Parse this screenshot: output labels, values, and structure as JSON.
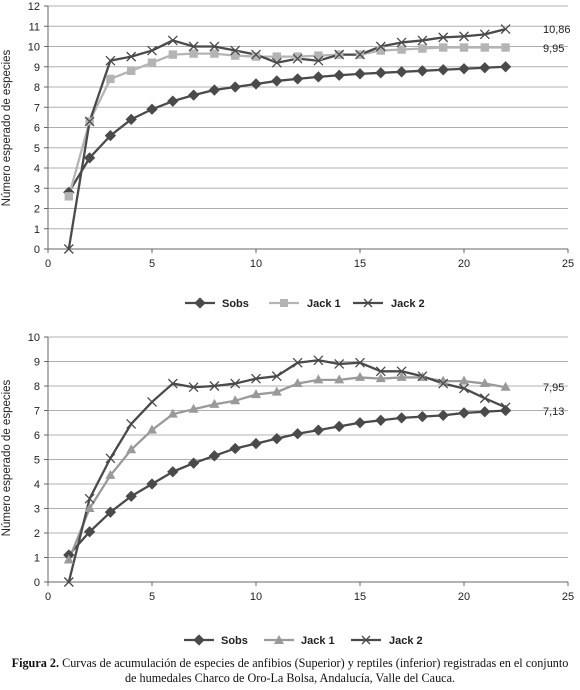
{
  "charts": [
    {
      "ylabel": "Número esperado de especies",
      "xlim": [
        0,
        25
      ],
      "ylim": [
        0,
        12
      ],
      "xticks": [
        "0",
        "5",
        "10",
        "15",
        "20",
        "25"
      ],
      "yticks": [
        "0",
        "1",
        "2",
        "3",
        "4",
        "5",
        "6",
        "7",
        "8",
        "9",
        "10",
        "11",
        "12"
      ],
      "end_labels": [
        "10,86",
        "9,95"
      ],
      "legend": [
        "Sobs",
        "Jack 1",
        "Jack 2"
      ]
    },
    {
      "ylabel": "Número esperado de especies",
      "xlim": [
        0,
        25
      ],
      "ylim": [
        0,
        10
      ],
      "xticks": [
        "0",
        "5",
        "10",
        "15",
        "20",
        "25"
      ],
      "yticks": [
        "0",
        "1",
        "2",
        "3",
        "4",
        "5",
        "6",
        "7",
        "8",
        "9",
        "10"
      ],
      "end_labels": [
        "7,95",
        "7,13"
      ],
      "legend": [
        "Sobs",
        "Jack 1",
        "Jack 2"
      ]
    }
  ],
  "chart_data": [
    {
      "type": "line",
      "ylabel": "Número esperado de especies",
      "xlim": [
        0,
        25
      ],
      "ylim": [
        0,
        12
      ],
      "grid": "horizontal",
      "legend_position": "bottom",
      "x": [
        1,
        2,
        3,
        4,
        5,
        6,
        7,
        8,
        9,
        10,
        11,
        12,
        13,
        14,
        15,
        16,
        17,
        18,
        19,
        20,
        21,
        22
      ],
      "series": [
        {
          "name": "Sobs",
          "marker": "diamond",
          "color": "#4a4a4a",
          "values": [
            2.8,
            4.5,
            5.6,
            6.4,
            6.9,
            7.3,
            7.6,
            7.85,
            8.0,
            8.15,
            8.3,
            8.4,
            8.5,
            8.58,
            8.65,
            8.7,
            8.75,
            8.8,
            8.85,
            8.9,
            8.95,
            9.0
          ]
        },
        {
          "name": "Jack 1",
          "marker": "square",
          "color": "#b4b4b4",
          "values": [
            2.6,
            6.3,
            8.4,
            8.8,
            9.2,
            9.6,
            9.65,
            9.65,
            9.55,
            9.5,
            9.5,
            9.5,
            9.55,
            9.6,
            9.6,
            9.8,
            9.85,
            9.9,
            9.95,
            9.95,
            9.95,
            9.95
          ]
        },
        {
          "name": "Jack 2",
          "marker": "x",
          "color": "#4a4a4a",
          "values": [
            0.0,
            6.3,
            9.3,
            9.5,
            9.8,
            10.3,
            10.0,
            10.0,
            9.8,
            9.6,
            9.2,
            9.4,
            9.3,
            9.6,
            9.6,
            10.0,
            10.2,
            10.3,
            10.45,
            10.5,
            10.6,
            10.86
          ]
        }
      ]
    },
    {
      "type": "line",
      "ylabel": "Número esperado de especies",
      "xlim": [
        0,
        25
      ],
      "ylim": [
        0,
        10
      ],
      "grid": "horizontal",
      "legend_position": "bottom",
      "x": [
        1,
        2,
        3,
        4,
        5,
        6,
        7,
        8,
        9,
        10,
        11,
        12,
        13,
        14,
        15,
        16,
        17,
        18,
        19,
        20,
        21,
        22
      ],
      "series": [
        {
          "name": "Sobs",
          "marker": "diamond",
          "color": "#4a4a4a",
          "values": [
            1.1,
            2.05,
            2.85,
            3.5,
            4.0,
            4.5,
            4.85,
            5.15,
            5.45,
            5.65,
            5.85,
            6.05,
            6.2,
            6.35,
            6.5,
            6.6,
            6.7,
            6.75,
            6.8,
            6.9,
            6.95,
            7.0
          ]
        },
        {
          "name": "Jack 1",
          "marker": "triangle",
          "color": "#9a9a9a",
          "values": [
            0.9,
            3.0,
            4.35,
            5.4,
            6.2,
            6.85,
            7.05,
            7.25,
            7.4,
            7.65,
            7.75,
            8.1,
            8.25,
            8.25,
            8.35,
            8.3,
            8.35,
            8.35,
            8.2,
            8.2,
            8.1,
            7.95
          ]
        },
        {
          "name": "Jack 2",
          "marker": "x",
          "color": "#4a4a4a",
          "values": [
            0.0,
            3.4,
            5.05,
            6.45,
            7.35,
            8.1,
            7.95,
            8.0,
            8.1,
            8.3,
            8.4,
            8.95,
            9.05,
            8.9,
            8.95,
            8.6,
            8.6,
            8.4,
            8.1,
            7.9,
            7.5,
            7.13
          ]
        }
      ]
    }
  ],
  "caption": {
    "label": "Figura 2.",
    "text": " Curvas de acumulación de especies de anfibios (Superior) y reptiles (inferior) registradas en el conjunto de humedales Charco de Oro-La Bolsa, Andalucía, Valle del Cauca."
  }
}
